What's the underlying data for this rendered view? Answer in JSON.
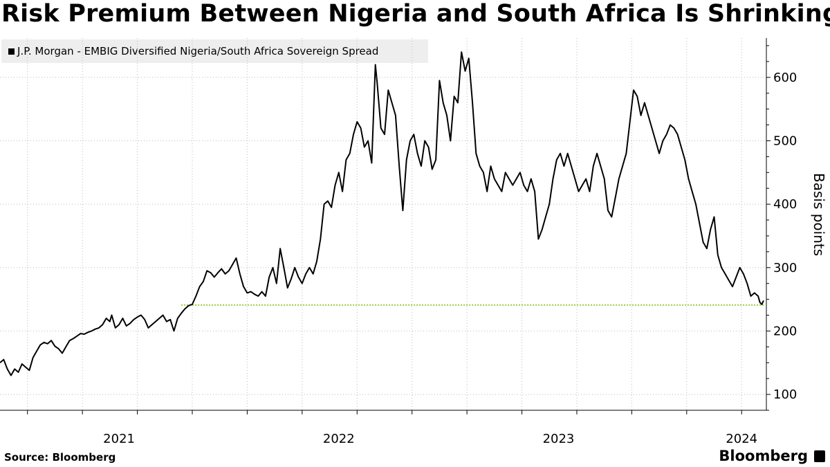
{
  "title": "Risk Premium Between Nigeria and South Africa Is Shrinking",
  "source": "Source: Bloomberg",
  "brand": "Bloomberg",
  "colors": {
    "line": "#000000",
    "reference": "#9ccc3c",
    "grid": "#bbbbbb",
    "legend_bg": "#eeeeee"
  },
  "chart_data": {
    "type": "line",
    "title": "Risk Premium Between Nigeria and South Africa Is Shrinking",
    "ylabel": "Basis points",
    "ylim": [
      75,
      662
    ],
    "y_ticks": [
      100,
      200,
      300,
      400,
      500,
      600
    ],
    "x_tick_labels": [
      "2021",
      "2022",
      "2023",
      "2024"
    ],
    "x_labels_at_month": [
      6,
      18,
      30,
      40
    ],
    "x_month_range": [
      -0.5,
      41.2
    ],
    "grid": true,
    "legend_position": "top-left",
    "reference_line": {
      "value": 241
    },
    "series": [
      {
        "name": "J.P. Morgan - EMBIG Diversified Nigeria/South Africa Sovereign Spread",
        "points": [
          [
            -0.5,
            150
          ],
          [
            -0.3,
            155
          ],
          [
            -0.1,
            140
          ],
          [
            0.1,
            130
          ],
          [
            0.3,
            140
          ],
          [
            0.5,
            135
          ],
          [
            0.7,
            148
          ],
          [
            0.9,
            143
          ],
          [
            1.1,
            138
          ],
          [
            1.3,
            158
          ],
          [
            1.5,
            168
          ],
          [
            1.7,
            178
          ],
          [
            1.9,
            182
          ],
          [
            2.1,
            180
          ],
          [
            2.3,
            185
          ],
          [
            2.5,
            176
          ],
          [
            2.7,
            172
          ],
          [
            2.9,
            165
          ],
          [
            3.1,
            175
          ],
          [
            3.3,
            185
          ],
          [
            3.5,
            188
          ],
          [
            3.7,
            192
          ],
          [
            3.9,
            196
          ],
          [
            4.1,
            195
          ],
          [
            4.3,
            198
          ],
          [
            4.5,
            200
          ],
          [
            4.7,
            203
          ],
          [
            4.9,
            205
          ],
          [
            5.1,
            210
          ],
          [
            5.3,
            220
          ],
          [
            5.5,
            215
          ],
          [
            5.6,
            225
          ],
          [
            5.8,
            205
          ],
          [
            6.0,
            210
          ],
          [
            6.2,
            220
          ],
          [
            6.4,
            208
          ],
          [
            6.6,
            212
          ],
          [
            6.8,
            218
          ],
          [
            7.0,
            222
          ],
          [
            7.2,
            225
          ],
          [
            7.4,
            218
          ],
          [
            7.6,
            205
          ],
          [
            7.8,
            210
          ],
          [
            8.0,
            215
          ],
          [
            8.2,
            220
          ],
          [
            8.4,
            225
          ],
          [
            8.6,
            215
          ],
          [
            8.8,
            218
          ],
          [
            9.0,
            200
          ],
          [
            9.2,
            220
          ],
          [
            9.4,
            228
          ],
          [
            9.6,
            235
          ],
          [
            9.8,
            240
          ],
          [
            10.0,
            242
          ],
          [
            10.2,
            255
          ],
          [
            10.4,
            270
          ],
          [
            10.6,
            278
          ],
          [
            10.8,
            295
          ],
          [
            11.0,
            292
          ],
          [
            11.2,
            285
          ],
          [
            11.4,
            292
          ],
          [
            11.6,
            298
          ],
          [
            11.8,
            290
          ],
          [
            12.0,
            295
          ],
          [
            12.2,
            305
          ],
          [
            12.4,
            315
          ],
          [
            12.6,
            290
          ],
          [
            12.8,
            270
          ],
          [
            13.0,
            260
          ],
          [
            13.2,
            262
          ],
          [
            13.4,
            258
          ],
          [
            13.6,
            255
          ],
          [
            13.8,
            262
          ],
          [
            14.0,
            255
          ],
          [
            14.2,
            285
          ],
          [
            14.4,
            300
          ],
          [
            14.6,
            275
          ],
          [
            14.8,
            330
          ],
          [
            15.0,
            300
          ],
          [
            15.2,
            268
          ],
          [
            15.4,
            282
          ],
          [
            15.6,
            300
          ],
          [
            15.8,
            285
          ],
          [
            16.0,
            275
          ],
          [
            16.2,
            290
          ],
          [
            16.4,
            300
          ],
          [
            16.6,
            290
          ],
          [
            16.8,
            310
          ],
          [
            17.0,
            345
          ],
          [
            17.2,
            400
          ],
          [
            17.4,
            405
          ],
          [
            17.6,
            395
          ],
          [
            17.8,
            430
          ],
          [
            18.0,
            450
          ],
          [
            18.2,
            420
          ],
          [
            18.4,
            470
          ],
          [
            18.6,
            480
          ],
          [
            18.8,
            510
          ],
          [
            19.0,
            530
          ],
          [
            19.2,
            520
          ],
          [
            19.4,
            490
          ],
          [
            19.6,
            500
          ],
          [
            19.8,
            465
          ],
          [
            20.0,
            620
          ],
          [
            20.1,
            590
          ],
          [
            20.3,
            520
          ],
          [
            20.5,
            510
          ],
          [
            20.7,
            580
          ],
          [
            20.9,
            560
          ],
          [
            21.1,
            540
          ],
          [
            21.3,
            460
          ],
          [
            21.5,
            390
          ],
          [
            21.7,
            470
          ],
          [
            21.9,
            500
          ],
          [
            22.1,
            510
          ],
          [
            22.3,
            480
          ],
          [
            22.5,
            460
          ],
          [
            22.7,
            500
          ],
          [
            22.9,
            490
          ],
          [
            23.1,
            455
          ],
          [
            23.3,
            470
          ],
          [
            23.5,
            595
          ],
          [
            23.7,
            560
          ],
          [
            23.9,
            540
          ],
          [
            24.1,
            500
          ],
          [
            24.3,
            570
          ],
          [
            24.5,
            560
          ],
          [
            24.7,
            640
          ],
          [
            24.9,
            610
          ],
          [
            25.1,
            630
          ],
          [
            25.3,
            560
          ],
          [
            25.5,
            480
          ],
          [
            25.7,
            460
          ],
          [
            25.9,
            450
          ],
          [
            26.1,
            420
          ],
          [
            26.3,
            460
          ],
          [
            26.5,
            440
          ],
          [
            26.7,
            430
          ],
          [
            26.9,
            420
          ],
          [
            27.1,
            450
          ],
          [
            27.3,
            440
          ],
          [
            27.5,
            430
          ],
          [
            27.7,
            440
          ],
          [
            27.9,
            450
          ],
          [
            28.1,
            430
          ],
          [
            28.3,
            420
          ],
          [
            28.5,
            440
          ],
          [
            28.7,
            420
          ],
          [
            28.9,
            345
          ],
          [
            29.1,
            360
          ],
          [
            29.3,
            380
          ],
          [
            29.5,
            400
          ],
          [
            29.7,
            440
          ],
          [
            29.9,
            470
          ],
          [
            30.1,
            480
          ],
          [
            30.3,
            460
          ],
          [
            30.5,
            480
          ],
          [
            30.7,
            460
          ],
          [
            30.9,
            440
          ],
          [
            31.1,
            420
          ],
          [
            31.3,
            430
          ],
          [
            31.5,
            440
          ],
          [
            31.7,
            420
          ],
          [
            31.9,
            460
          ],
          [
            32.1,
            480
          ],
          [
            32.3,
            460
          ],
          [
            32.5,
            440
          ],
          [
            32.7,
            390
          ],
          [
            32.9,
            380
          ],
          [
            33.1,
            410
          ],
          [
            33.3,
            440
          ],
          [
            33.5,
            460
          ],
          [
            33.7,
            480
          ],
          [
            33.9,
            530
          ],
          [
            34.1,
            580
          ],
          [
            34.3,
            570
          ],
          [
            34.5,
            540
          ],
          [
            34.7,
            560
          ],
          [
            34.9,
            540
          ],
          [
            35.1,
            520
          ],
          [
            35.3,
            500
          ],
          [
            35.5,
            480
          ],
          [
            35.7,
            500
          ],
          [
            35.9,
            510
          ],
          [
            36.1,
            525
          ],
          [
            36.3,
            520
          ],
          [
            36.5,
            510
          ],
          [
            36.7,
            490
          ],
          [
            36.9,
            470
          ],
          [
            37.1,
            440
          ],
          [
            37.3,
            420
          ],
          [
            37.5,
            400
          ],
          [
            37.7,
            370
          ],
          [
            37.9,
            340
          ],
          [
            38.1,
            330
          ],
          [
            38.3,
            360
          ],
          [
            38.5,
            380
          ],
          [
            38.7,
            320
          ],
          [
            38.9,
            300
          ],
          [
            39.1,
            290
          ],
          [
            39.3,
            280
          ],
          [
            39.5,
            270
          ],
          [
            39.7,
            285
          ],
          [
            39.9,
            300
          ],
          [
            40.1,
            290
          ],
          [
            40.3,
            275
          ],
          [
            40.5,
            255
          ],
          [
            40.7,
            260
          ],
          [
            40.9,
            255
          ],
          [
            41.0,
            245
          ],
          [
            41.1,
            242
          ],
          [
            41.2,
            248
          ]
        ]
      }
    ]
  }
}
